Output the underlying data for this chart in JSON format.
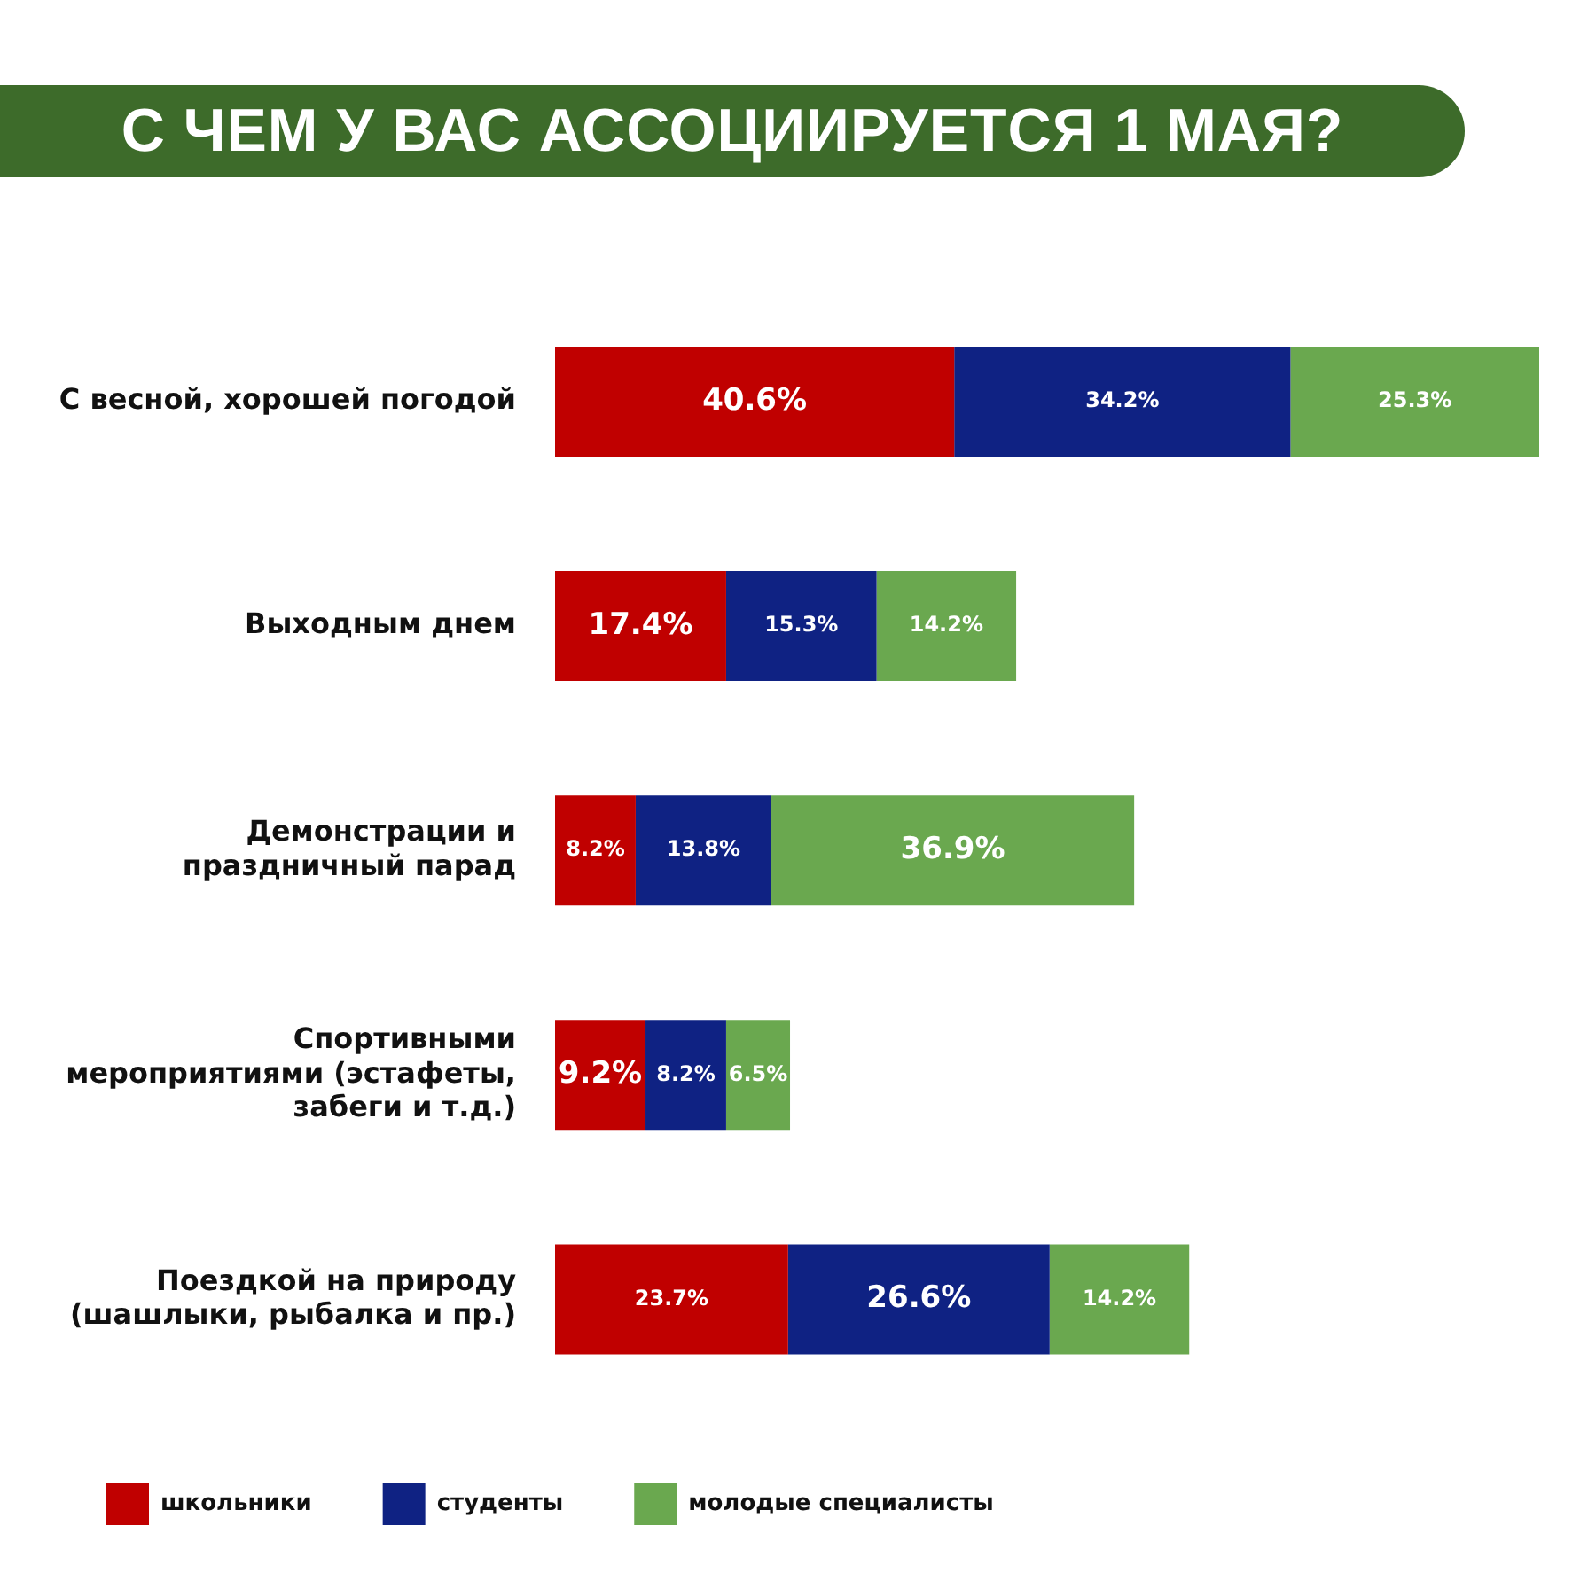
{
  "chart_data": {
    "type": "bar",
    "orientation": "horizontal",
    "stacked": true,
    "title": "С ЧЕМ У ВАС АССОЦИИРУЕТСЯ 1 МАЯ?",
    "categories": [
      "С весной, хорошей погодой",
      "Выходным днем",
      "Демонстрации и праздничный парад",
      "Спортивными мероприятиями (эстафеты, забеги и т.д.)",
      "Поездкой на природу (шашлыки, рыбалка и пр.)"
    ],
    "series": [
      {
        "name": "школьники",
        "color": "#c00000",
        "values": [
          40.6,
          17.4,
          8.2,
          9.2,
          23.7
        ],
        "value_labels": [
          "40.6%",
          "17.4%",
          "8.2%",
          "9.2%",
          "23.7%"
        ]
      },
      {
        "name": "студенты",
        "color": "#0f2283",
        "values": [
          34.2,
          15.3,
          13.8,
          8.2,
          26.6
        ],
        "value_labels": [
          "34.2%",
          "15.3%",
          "13.8%",
          "8.2%",
          "26.6%"
        ]
      },
      {
        "name": "молодые специалисты",
        "color": "#6aa84f",
        "values": [
          25.3,
          14.2,
          36.9,
          6.5,
          14.2
        ],
        "value_labels": [
          "25.3%",
          "14.2%",
          "36.9%",
          "6.5%",
          "14.2%"
        ]
      }
    ],
    "legend": "bottom left"
  }
}
